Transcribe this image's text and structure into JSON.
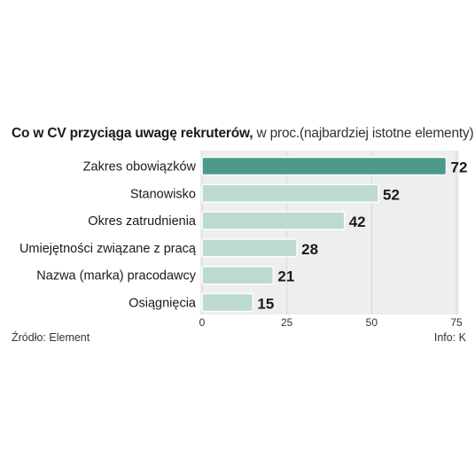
{
  "chart_data": {
    "type": "bar",
    "orientation": "horizontal",
    "title": "Co w CV przyciąga uwagę rekruterów,",
    "subtitle": "w proc.(najbardziej istotne elementy)",
    "categories": [
      "Zakres obowiązków",
      "Stanowisko",
      "Okres zatrudnienia",
      "Umiejętności związane z pracą",
      "Nazwa (marka) pracodawcy",
      "Osiągnięcia"
    ],
    "values": [
      72,
      52,
      42,
      28,
      21,
      15
    ],
    "value_labels": [
      "72",
      "52",
      "42",
      "28",
      "21",
      "15"
    ],
    "xlim": [
      0,
      75
    ],
    "xticks": [
      0,
      25,
      50,
      75
    ],
    "xtick_labels": [
      "0",
      "25",
      "50",
      "75"
    ],
    "grid": true,
    "colors": {
      "highlight": "#4e9a8a",
      "bar": "#bcd9d2",
      "background": "#eeeeee",
      "grid": "#d6d6d6"
    },
    "highlight_index": 0
  },
  "footer": {
    "source": "Źródło: Element",
    "info": "Info: K"
  }
}
